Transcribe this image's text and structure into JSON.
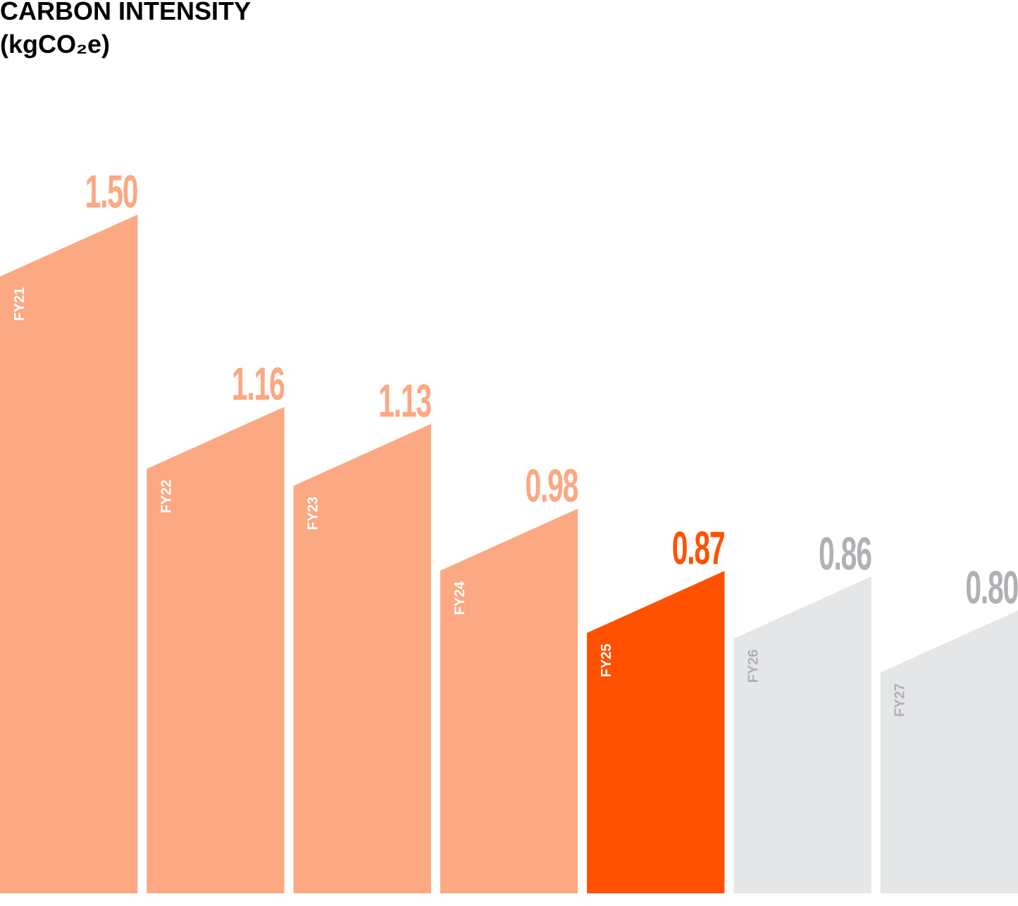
{
  "chart_data": {
    "type": "bar",
    "title": "CARBON INTENSITY",
    "subtitle": "(kgCO₂e)",
    "categories": [
      "FY21",
      "FY22",
      "FY23",
      "FY24",
      "FY25",
      "FY26",
      "FY27"
    ],
    "values": [
      1.5,
      1.16,
      1.13,
      0.98,
      0.87,
      0.86,
      0.8
    ],
    "value_labels": [
      "1.50",
      "1.16",
      "1.13",
      "0.98",
      "0.87",
      "0.86",
      "0.80"
    ],
    "colors": [
      "#fca882",
      "#fca882",
      "#fca882",
      "#fca882",
      "#ff5100",
      "#e5e6e8",
      "#e5e6e8"
    ],
    "value_label_colors": [
      "#fca882",
      "#fca882",
      "#fca882",
      "#fca882",
      "#ff5100",
      "#b0b1b5",
      "#b0b1b5"
    ],
    "category_label_colors": [
      "#ffffff",
      "#ffffff",
      "#ffffff",
      "#ffffff",
      "#ffffff",
      "#b0b1b5",
      "#b0b1b5"
    ],
    "ylim": [
      0.3,
      1.7
    ]
  }
}
